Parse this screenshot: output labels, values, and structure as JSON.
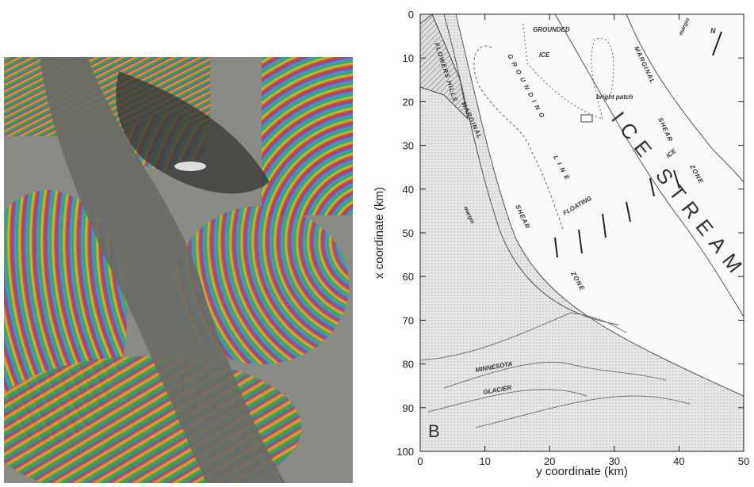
{
  "chart_data": {
    "type": "map",
    "xlabel": "y coordinate (km)",
    "ylabel": "x coordinate (km)",
    "xlim": [
      0,
      50
    ],
    "xticks": [
      0,
      10,
      20,
      30,
      40,
      50
    ],
    "ylim": [
      0,
      100
    ],
    "yticks": [
      0,
      10,
      20,
      30,
      40,
      50,
      60,
      70,
      80,
      90,
      100
    ],
    "y_inverted": true,
    "panel_label": "B",
    "annotations": [
      "GROUNDED",
      "ICE",
      "GROUNDING",
      "LINE",
      "bright patch",
      "ICE STREAM",
      "FLOATING",
      "ICE",
      "MARGINAL",
      "SHEAR",
      "ZONE",
      "MARGINAL",
      "SHEAR",
      "ZONE",
      "margin",
      "margin",
      "MINNESOTA",
      "GLACIER",
      "FLOWERS HILLS",
      "N"
    ]
  }
}
